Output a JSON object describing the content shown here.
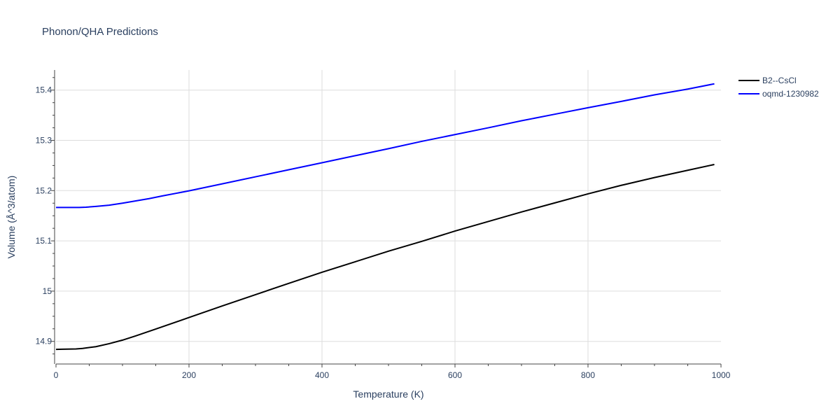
{
  "chart_data": {
    "type": "line",
    "title": "Phonon/QHA Predictions",
    "xlabel": "Temperature (K)",
    "ylabel": "Volume (Å^3/atom)",
    "xlim": [
      0,
      1000
    ],
    "ylim": [
      14.855,
      15.44
    ],
    "x_ticks": [
      0,
      200,
      400,
      600,
      800,
      1000
    ],
    "x_tick_labels": [
      "0",
      "200",
      "400",
      "600",
      "800",
      "1000"
    ],
    "y_ticks": [
      14.9,
      15.0,
      15.1,
      15.2,
      15.3,
      15.4
    ],
    "y_tick_labels": [
      "14.9",
      "15",
      "15.1",
      "15.2",
      "15.3",
      "15.4"
    ],
    "grid": true,
    "legend_position": "top-right",
    "series": [
      {
        "name": "B2--CsCl",
        "color": "#000000",
        "x": [
          0,
          10,
          30,
          40,
          60,
          80,
          100,
          120,
          150,
          200,
          250,
          300,
          350,
          400,
          450,
          500,
          550,
          600,
          650,
          700,
          750,
          800,
          850,
          900,
          950,
          990
        ],
        "y": [
          14.884,
          14.8845,
          14.885,
          14.886,
          14.8895,
          14.8955,
          14.9025,
          14.911,
          14.9245,
          14.9475,
          14.9705,
          14.993,
          15.0155,
          15.0375,
          15.0585,
          15.0795,
          15.099,
          15.1195,
          15.1385,
          15.1575,
          15.1755,
          15.1935,
          15.2105,
          15.226,
          15.2405,
          15.252
        ]
      },
      {
        "name": "oqmd-1230982",
        "color": "#0000ff",
        "x": [
          0,
          10,
          20,
          35,
          45,
          60,
          80,
          100,
          120,
          140,
          160,
          200,
          250,
          300,
          350,
          400,
          450,
          500,
          550,
          600,
          650,
          700,
          750,
          800,
          850,
          900,
          950,
          990
        ],
        "y": [
          15.1665,
          15.1665,
          15.1665,
          15.1665,
          15.167,
          15.1685,
          15.171,
          15.175,
          15.1795,
          15.184,
          15.1895,
          15.1995,
          15.2135,
          15.2275,
          15.2415,
          15.2555,
          15.2695,
          15.2835,
          15.298,
          15.3115,
          15.325,
          15.339,
          15.352,
          15.365,
          15.3775,
          15.3905,
          15.402,
          15.4125
        ]
      }
    ]
  }
}
